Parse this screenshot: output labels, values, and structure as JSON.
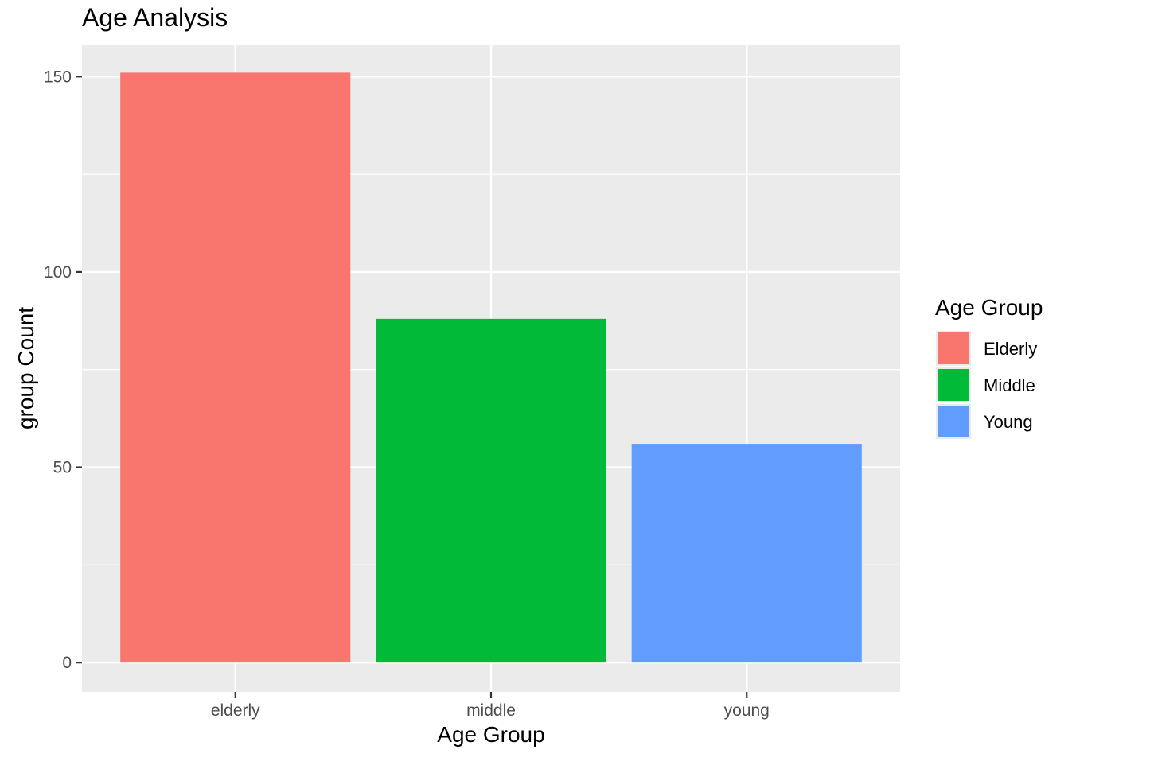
{
  "chart_data": {
    "type": "bar",
    "title": "Age Analysis",
    "xlabel": "Age Group",
    "ylabel": "group Count",
    "categories": [
      "elderly",
      "middle",
      "young"
    ],
    "values": [
      151,
      88,
      56
    ],
    "colors": [
      "#F8766D",
      "#00BA38",
      "#619CFF"
    ],
    "ylim": [
      -7.5,
      158
    ],
    "yticks": [
      0,
      50,
      100,
      150
    ],
    "grid": true,
    "legend": {
      "title": "Age Group",
      "placement": "right",
      "entries": [
        {
          "label": "Elderly",
          "color": "#F8766D"
        },
        {
          "label": "Middle",
          "color": "#00BA38"
        },
        {
          "label": "Young",
          "color": "#619CFF"
        }
      ]
    },
    "panel_background": "#EBEBEB",
    "grid_color": "#FFFFFF"
  }
}
